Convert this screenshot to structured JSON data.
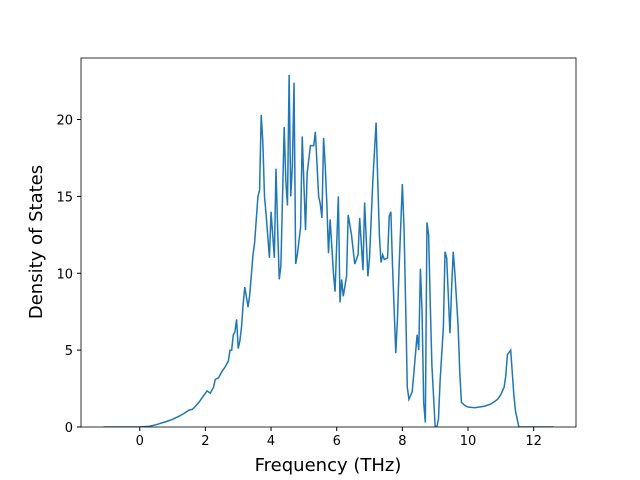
{
  "chart_data": {
    "type": "line",
    "xlabel": "Frequency (THz)",
    "ylabel": "Density of States",
    "xlim": [
      -1.79,
      13.29
    ],
    "ylim": [
      0,
      24
    ],
    "xticks": [
      0,
      2,
      4,
      6,
      8,
      10,
      12
    ],
    "yticks": [
      0,
      5,
      10,
      15,
      20
    ],
    "series": [
      {
        "color": "#1f77b4",
        "x": [
          -1.1,
          0,
          0.3,
          0.5,
          0.8,
          1.0,
          1.2,
          1.4,
          1.5,
          1.6,
          1.7,
          1.8,
          1.9,
          2.0,
          2.05,
          2.15,
          2.25,
          2.3,
          2.4,
          2.5,
          2.6,
          2.7,
          2.75,
          2.8,
          2.85,
          2.9,
          2.95,
          3.0,
          3.05,
          3.1,
          3.15,
          3.2,
          3.3,
          3.35,
          3.45,
          3.5,
          3.6,
          3.65,
          3.7,
          3.75,
          3.8,
          3.85,
          3.95,
          4.0,
          4.05,
          4.1,
          4.15,
          4.2,
          4.25,
          4.3,
          4.4,
          4.45,
          4.5,
          4.55,
          4.6,
          4.65,
          4.7,
          4.75,
          4.8,
          4.9,
          4.95,
          5.05,
          5.1,
          5.2,
          5.3,
          5.35,
          5.45,
          5.5,
          5.55,
          5.6,
          5.65,
          5.7,
          5.75,
          5.8,
          5.9,
          5.95,
          6.05,
          6.1,
          6.15,
          6.2,
          6.3,
          6.35,
          6.45,
          6.55,
          6.65,
          6.7,
          6.8,
          6.85,
          6.95,
          7.0,
          7.1,
          7.2,
          7.25,
          7.3,
          7.35,
          7.4,
          7.45,
          7.55,
          7.6,
          7.65,
          7.7,
          7.8,
          7.85,
          7.9,
          8.0,
          8.05,
          8.1,
          8.15,
          8.2,
          8.3,
          8.35,
          8.45,
          8.5,
          8.55,
          8.6,
          8.65,
          8.7,
          8.75,
          8.8,
          8.85,
          8.9,
          9.0,
          9.05,
          9.1,
          9.15,
          9.25,
          9.3,
          9.35,
          9.45,
          9.5,
          9.55,
          9.6,
          9.7,
          9.75,
          9.8,
          9.9,
          10.0,
          10.2,
          10.5,
          10.7,
          10.9,
          11.0,
          11.1,
          11.15,
          11.2,
          11.3,
          11.35,
          11.4,
          11.45,
          11.55,
          12.6
        ],
        "values": [
          0,
          0,
          0.05,
          0.15,
          0.35,
          0.5,
          0.7,
          0.95,
          1.1,
          1.15,
          1.35,
          1.6,
          1.9,
          2.2,
          2.35,
          2.2,
          2.6,
          3.1,
          3.2,
          3.6,
          3.9,
          4.3,
          5.0,
          5.0,
          6.0,
          6.2,
          7.0,
          5.1,
          5.6,
          6.5,
          8.0,
          9.1,
          7.8,
          8.6,
          11.2,
          12.0,
          15.0,
          15.4,
          20.3,
          18.5,
          15.0,
          13.8,
          11.0,
          14.0,
          12.5,
          11.0,
          16.8,
          13.0,
          9.6,
          10.5,
          19.5,
          16.0,
          14.4,
          22.9,
          15.0,
          17.0,
          22.4,
          10.6,
          11.2,
          13.0,
          18.9,
          12.8,
          16.5,
          18.3,
          18.3,
          19.2,
          15.0,
          14.5,
          13.6,
          18.8,
          17.0,
          14.5,
          11.3,
          13.5,
          10.0,
          8.8,
          15.0,
          8.1,
          9.6,
          8.5,
          9.8,
          13.8,
          12.5,
          10.6,
          11.2,
          13.6,
          10.2,
          14.6,
          9.8,
          11.0,
          16.0,
          19.8,
          16.0,
          12.5,
          10.7,
          11.2,
          10.9,
          11.0,
          13.7,
          14.0,
          10.5,
          4.8,
          7.0,
          10.3,
          15.8,
          13.0,
          8.0,
          2.6,
          1.8,
          2.3,
          3.5,
          6.0,
          5.0,
          10.3,
          7.5,
          1.6,
          0.3,
          13.3,
          12.5,
          8.0,
          4.0,
          0,
          0,
          0.5,
          3.0,
          6.5,
          11.4,
          11.0,
          6.1,
          9.0,
          11.4,
          10.0,
          6.5,
          3.5,
          1.6,
          1.4,
          1.3,
          1.25,
          1.35,
          1.5,
          1.8,
          2.1,
          2.6,
          3.3,
          4.7,
          5.0,
          3.5,
          2.0,
          1.0,
          0,
          0
        ]
      }
    ]
  }
}
